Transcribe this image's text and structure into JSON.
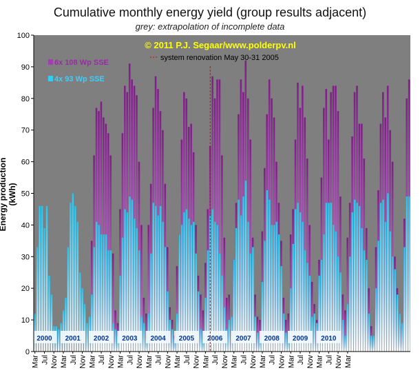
{
  "header": {
    "title": "Cumulative monthly  energy yield (group results adjacent)",
    "subtitle": "grey: extrapolation of incomplete data"
  },
  "chart_data": {
    "type": "bar",
    "copyright": "© 2011 P.J. Segaar/www.polderpv.nl",
    "ylabel": "Energy production (kWh)",
    "ylim": [
      0,
      100
    ],
    "yticks": [
      0,
      10,
      20,
      30,
      40,
      50,
      60,
      70,
      80,
      90,
      100
    ],
    "grid": false,
    "legend_position": "top-left",
    "annotation": {
      "text": "system renovation May 30-31 2005",
      "at_month_index": 74,
      "color": "#dd0000"
    },
    "colors": {
      "background": "#7f7f7f",
      "series1": "#7e1f86",
      "series2": "#33ccf5",
      "year_label": "#003399"
    },
    "years": [
      "2000",
      "2001",
      "2002",
      "2003",
      "2004",
      "2005",
      "2006",
      "2007",
      "2008",
      "2009",
      "2010"
    ],
    "xtick_labels": [
      "Mar",
      "Jul",
      "Nov",
      "Mar",
      "Jul",
      "Nov",
      "Mar",
      "Jul",
      "Nov",
      "Mar",
      "Jul",
      "Nov",
      "Mar",
      "Jul",
      "Nov",
      "Mar",
      "Jul",
      "Nov",
      "Mar",
      "Jul",
      "Nov",
      "Mar",
      "Jul",
      "Nov",
      "Mar",
      "Jul",
      "Nov",
      "Mar",
      "Jul",
      "Nov",
      "Mar",
      "Jul",
      "Nov",
      "Mar"
    ],
    "categories_start": "2000-03",
    "series": [
      {
        "name": "6x 108 Wp SSE",
        "values": [
          0,
          0,
          0,
          0,
          0,
          0,
          0,
          0,
          0,
          0,
          0,
          0,
          0,
          0,
          0,
          0,
          0,
          0,
          0,
          0,
          0,
          0,
          0,
          0,
          35,
          62,
          77,
          76,
          79,
          74,
          72,
          69,
          62,
          31,
          13,
          9,
          45,
          69,
          84,
          82,
          91,
          86,
          84,
          81,
          60,
          40,
          17,
          12,
          40,
          53,
          77,
          87,
          83,
          76,
          70,
          53,
          33,
          14,
          10,
          5,
          27,
          37,
          67,
          82,
          80,
          71,
          72,
          63,
          40,
          24,
          18,
          13,
          28,
          45,
          65,
          87,
          80,
          86,
          86,
          62,
          36,
          17,
          18,
          7,
          29,
          47,
          75,
          86,
          82,
          92,
          80,
          67,
          36,
          18,
          11,
          10,
          38,
          58,
          75,
          86,
          80,
          74,
          60,
          47,
          35,
          17,
          10,
          12,
          37,
          45,
          67,
          85,
          77,
          84,
          74,
          61,
          40,
          22,
          15,
          10,
          29,
          55,
          77,
          83,
          67,
          82,
          84,
          84,
          76,
          49,
          18,
          13,
          36,
          47,
          68,
          82,
          84,
          72,
          72,
          61,
          39,
          20,
          8,
          5,
          33,
          51,
          72,
          82,
          74,
          84,
          70,
          60,
          30,
          20,
          12,
          8,
          42,
          80,
          86
        ]
      },
      {
        "name": "4x 93 Wp SSE",
        "values": [
          12,
          33,
          46,
          46,
          39,
          46,
          24,
          18,
          8,
          8,
          7,
          9,
          13,
          17,
          33,
          47,
          50,
          46,
          41,
          25,
          20,
          15,
          9,
          11,
          18,
          33,
          41,
          40,
          37,
          37,
          37,
          32,
          32,
          9,
          7,
          5,
          24,
          36,
          45,
          44,
          49,
          48,
          42,
          39,
          32,
          11,
          9,
          4,
          12,
          31,
          47,
          46,
          43,
          46,
          41,
          33,
          19,
          10,
          7,
          4,
          12,
          37,
          40,
          44,
          45,
          42,
          40,
          41,
          31,
          19,
          7,
          4,
          17,
          32,
          43,
          45,
          41,
          40,
          31,
          24,
          14,
          7,
          10,
          11,
          29,
          39,
          48,
          43,
          49,
          54,
          41,
          31,
          33,
          11,
          6,
          4,
          22,
          35,
          51,
          48,
          40,
          40,
          41,
          37,
          27,
          12,
          6,
          4,
          20,
          34,
          45,
          47,
          44,
          41,
          32,
          28,
          24,
          11,
          12,
          9,
          24,
          29,
          37,
          47,
          47,
          47,
          40,
          38,
          30,
          25,
          10,
          5,
          15,
          30,
          44,
          48,
          47,
          46,
          39,
          32,
          29,
          12,
          5,
          5,
          20,
          35,
          47,
          48,
          41,
          50,
          38,
          30,
          26,
          18,
          12,
          9,
          33,
          49,
          49
        ]
      }
    ]
  }
}
